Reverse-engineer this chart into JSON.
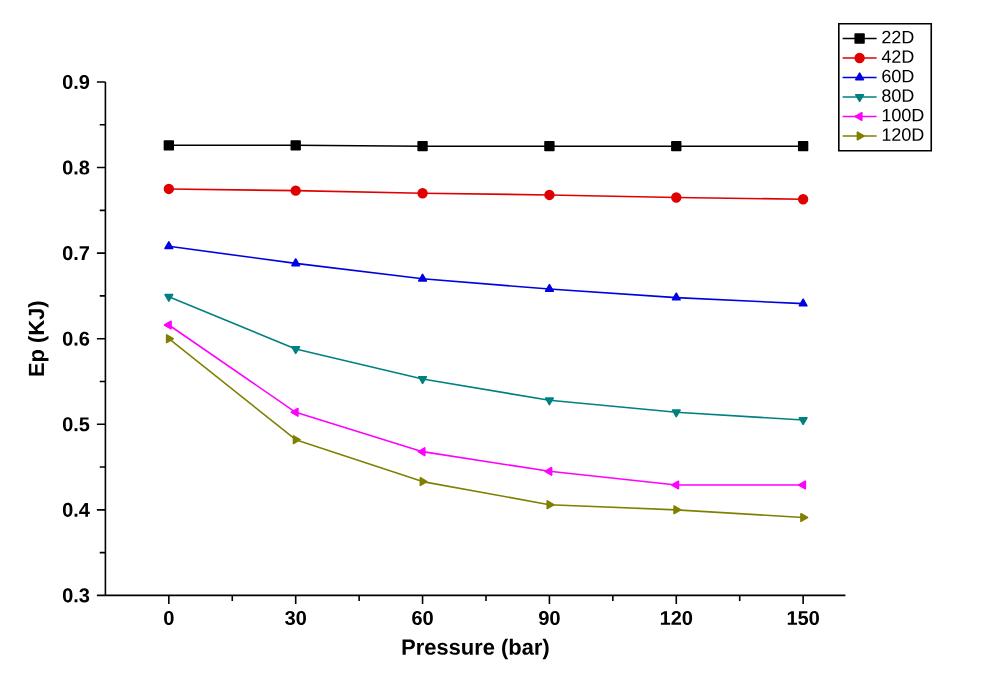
{
  "chart_data": {
    "type": "line",
    "xlabel": "Pressure (bar)",
    "ylabel": "Ep (KJ)",
    "x": [
      0,
      30,
      60,
      90,
      120,
      150
    ],
    "xlim": [
      -15,
      160
    ],
    "xticks": [
      0,
      30,
      60,
      90,
      120,
      150
    ],
    "ylim": [
      0.3,
      0.9
    ],
    "yticks": [
      0.3,
      0.4,
      0.5,
      0.6,
      0.7,
      0.8,
      0.9
    ],
    "legend": "top right",
    "grid": false,
    "series": [
      {
        "name": "22D",
        "color": "#000000",
        "marker": "square",
        "values": [
          0.826,
          0.826,
          0.825,
          0.825,
          0.825,
          0.825
        ]
      },
      {
        "name": "42D",
        "color": "#e00000",
        "marker": "circle",
        "values": [
          0.775,
          0.773,
          0.77,
          0.768,
          0.765,
          0.763
        ]
      },
      {
        "name": "60D",
        "color": "#0000e0",
        "marker": "triangle",
        "values": [
          0.708,
          0.688,
          0.67,
          0.658,
          0.648,
          0.641
        ]
      },
      {
        "name": "80D",
        "color": "#008080",
        "marker": "triangle-down",
        "values": [
          0.649,
          0.588,
          0.553,
          0.528,
          0.514,
          0.505
        ]
      },
      {
        "name": "100D",
        "color": "#ff00ff",
        "marker": "triangle-left",
        "values": [
          0.616,
          0.514,
          0.468,
          0.445,
          0.429,
          0.429
        ]
      },
      {
        "name": "120D",
        "color": "#808000",
        "marker": "triangle-right",
        "values": [
          0.6,
          0.482,
          0.433,
          0.406,
          0.4,
          0.391
        ]
      }
    ]
  }
}
